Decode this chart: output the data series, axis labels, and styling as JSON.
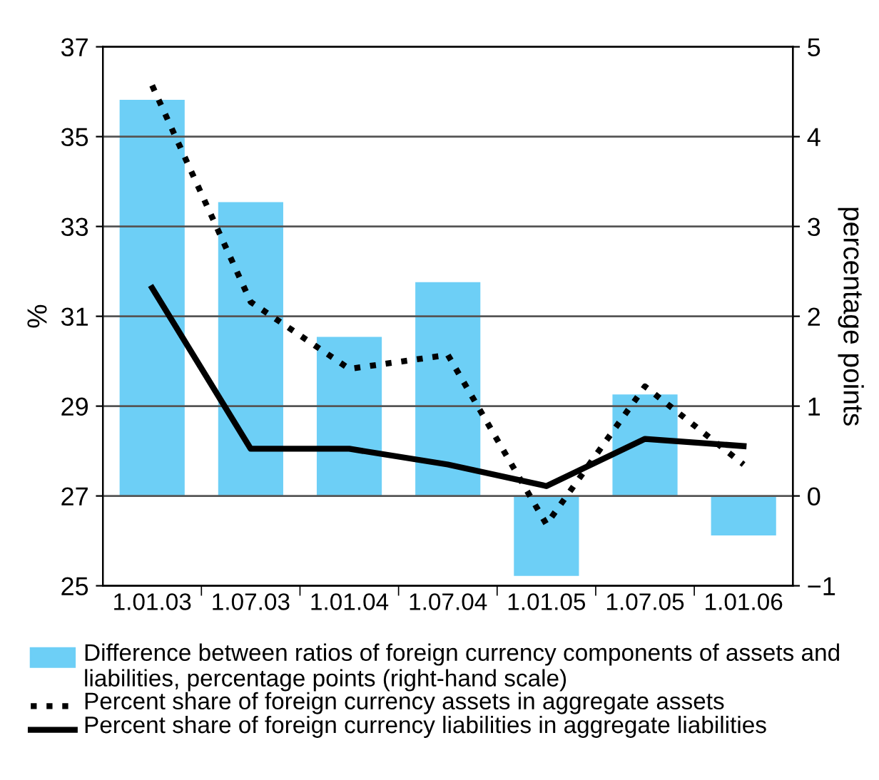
{
  "chart_data": {
    "type": "bar",
    "categories": [
      "1.01.03",
      "1.07.03",
      "1.01.04",
      "1.07.04",
      "1.01.05",
      "1.07.05",
      "1.01.06"
    ],
    "ylabel": "%",
    "y2label": "percentage points",
    "ylim": [
      25,
      37
    ],
    "yticks": [
      25,
      27,
      29,
      31,
      33,
      35,
      37
    ],
    "y2lim": [
      -1,
      5
    ],
    "y2ticks": [
      {
        "value": -1,
        "label": "−1"
      },
      0,
      1,
      2,
      3,
      4,
      5
    ],
    "grid": "y",
    "legend": "bottom",
    "series": [
      {
        "name": "Difference between ratios of foreign currency components of assets and liabilities, percentage points (right-hand scale)",
        "axis": "y2",
        "color": "#6dcff6",
        "values": [
          4.41,
          3.27,
          1.77,
          2.38,
          -0.89,
          1.13,
          -0.44
        ]
      },
      {
        "name": "Percent share of foreign currency assets in aggregate assets",
        "type": "line",
        "color": "#000000",
        "line_style": "dotted",
        "values": [
          36.14,
          31.32,
          29.83,
          30.14,
          26.37,
          29.44,
          27.7
        ]
      },
      {
        "name": "Percent share of foreign currency liabilities in aggregate liabilities",
        "type": "line",
        "color": "#000000",
        "line_style": "solid",
        "values": [
          31.63,
          28.05,
          28.05,
          27.7,
          27.22,
          28.27,
          28.11
        ]
      }
    ]
  }
}
